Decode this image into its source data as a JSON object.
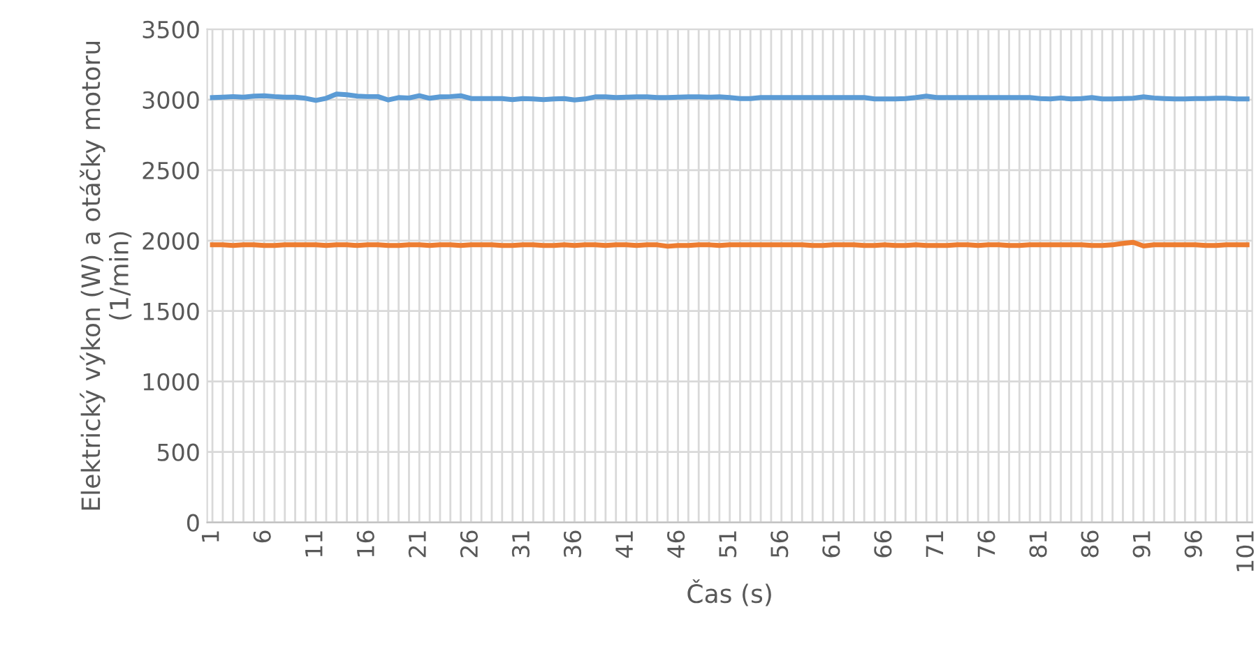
{
  "chart_data": {
    "type": "line",
    "xlabel": "Čas (s)",
    "ylabel": "Elektrický výkon (W) a otáčky motoru (1/min)",
    "categories": [
      "1",
      null,
      null,
      null,
      null,
      "6",
      null,
      null,
      null,
      null,
      "11",
      null,
      null,
      null,
      null,
      "16",
      null,
      null,
      null,
      null,
      "21",
      null,
      null,
      null,
      null,
      "26",
      null,
      null,
      null,
      null,
      "31",
      null,
      null,
      null,
      null,
      "36",
      null,
      null,
      null,
      null,
      "41",
      null,
      null,
      null,
      null,
      "46",
      null,
      null,
      null,
      null,
      "51",
      null,
      null,
      null,
      null,
      "56",
      null,
      null,
      null,
      null,
      "61",
      null,
      null,
      null,
      null,
      "66",
      null,
      null,
      null,
      null,
      "71",
      null,
      null,
      null,
      null,
      "76",
      null,
      null,
      null,
      null,
      "81",
      null,
      null,
      null,
      null,
      "86",
      null,
      null,
      null,
      null,
      "91",
      null,
      null,
      null,
      null,
      "96",
      null,
      null,
      null,
      null,
      "101"
    ],
    "series": [
      {
        "color": "#5b9bd5",
        "values": [
          3015,
          3018,
          3022,
          3018,
          3025,
          3028,
          3022,
          3018,
          3018,
          3010,
          2995,
          3010,
          3040,
          3035,
          3025,
          3022,
          3022,
          2998,
          3015,
          3012,
          3028,
          3010,
          3020,
          3022,
          3028,
          3008,
          3008,
          3008,
          3008,
          3000,
          3008,
          3005,
          3000,
          3005,
          3008,
          2998,
          3005,
          3020,
          3020,
          3015,
          3018,
          3020,
          3020,
          3015,
          3015,
          3018,
          3020,
          3020,
          3018,
          3020,
          3015,
          3008,
          3008,
          3015,
          3015,
          3015,
          3015,
          3015,
          3015,
          3015,
          3015,
          3015,
          3015,
          3015,
          3005,
          3005,
          3005,
          3008,
          3015,
          3025,
          3015,
          3015,
          3015,
          3015,
          3015,
          3015,
          3015,
          3015,
          3015,
          3015,
          3008,
          3005,
          3012,
          3005,
          3008,
          3015,
          3005,
          3005,
          3008,
          3010,
          3020,
          3012,
          3008,
          3005,
          3005,
          3008,
          3008,
          3010,
          3010,
          3005,
          3005
        ]
      },
      {
        "color": "#ed7d31",
        "values": [
          1970,
          1970,
          1965,
          1970,
          1970,
          1965,
          1965,
          1970,
          1970,
          1970,
          1970,
          1965,
          1970,
          1970,
          1965,
          1970,
          1970,
          1965,
          1965,
          1970,
          1970,
          1965,
          1970,
          1970,
          1965,
          1970,
          1970,
          1970,
          1965,
          1965,
          1970,
          1970,
          1965,
          1965,
          1970,
          1965,
          1970,
          1970,
          1965,
          1970,
          1970,
          1965,
          1970,
          1970,
          1960,
          1965,
          1965,
          1970,
          1970,
          1965,
          1970,
          1970,
          1970,
          1970,
          1970,
          1970,
          1970,
          1970,
          1965,
          1965,
          1970,
          1970,
          1970,
          1965,
          1965,
          1970,
          1965,
          1965,
          1970,
          1965,
          1965,
          1965,
          1970,
          1970,
          1965,
          1970,
          1970,
          1965,
          1965,
          1970,
          1970,
          1970,
          1970,
          1970,
          1970,
          1965,
          1965,
          1970,
          1980,
          1988,
          1962,
          1970,
          1970,
          1970,
          1970,
          1970,
          1965,
          1965,
          1970,
          1970,
          1970
        ]
      }
    ],
    "ylim": [
      0,
      3500
    ],
    "yticks": [
      0,
      500,
      1000,
      1500,
      2000,
      2500,
      3000,
      3500
    ],
    "grid": true,
    "legend": false
  }
}
